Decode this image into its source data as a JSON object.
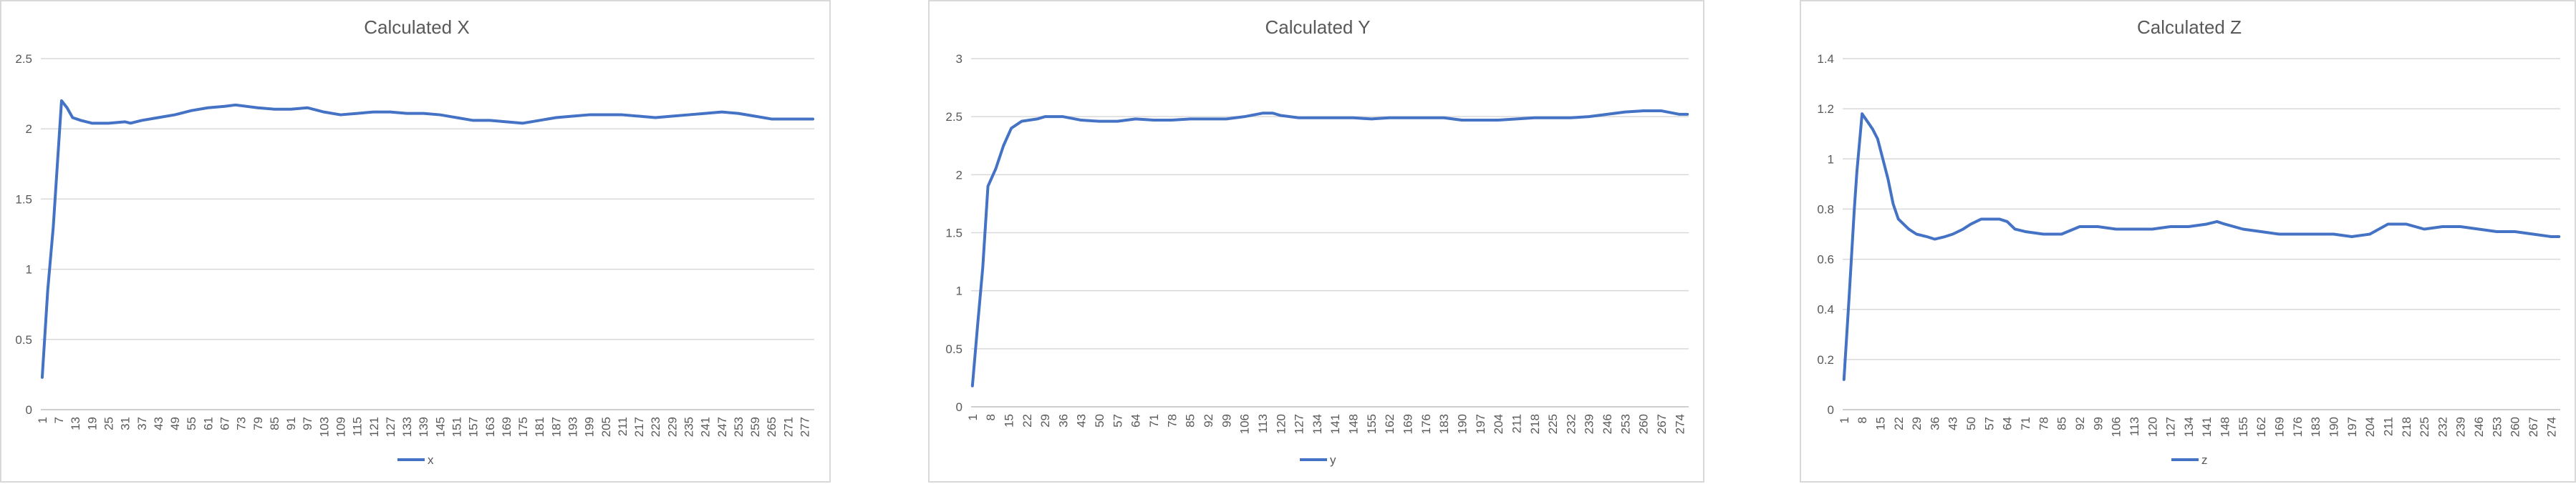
{
  "colors": {
    "series": "#4472c4",
    "grid": "#d9d9d9",
    "text": "#595959",
    "border": "#d9d9d9"
  },
  "chart_data": [
    {
      "type": "line",
      "title": "Calculated X",
      "xlabel": "",
      "ylabel": "",
      "ylim": [
        0,
        2.5
      ],
      "yticks": [
        "0",
        "0.5",
        "1",
        "1.5",
        "2",
        "2.5"
      ],
      "xticks": [
        "1",
        "7",
        "13",
        "19",
        "25",
        "31",
        "37",
        "43",
        "49",
        "55",
        "61",
        "67",
        "73",
        "79",
        "85",
        "91",
        "97",
        "103",
        "109",
        "115",
        "121",
        "127",
        "133",
        "139",
        "145",
        "151",
        "157",
        "163",
        "169",
        "175",
        "181",
        "187",
        "193",
        "199",
        "205",
        "211",
        "217",
        "223",
        "229",
        "235",
        "241",
        "247",
        "253",
        "259",
        "265",
        "271",
        "277"
      ],
      "x_count": 280,
      "grid": true,
      "legend_position": "bottom",
      "series": [
        {
          "name": "x",
          "points": [
            [
              1,
              0.23
            ],
            [
              3,
              0.85
            ],
            [
              5,
              1.3
            ],
            [
              6,
              1.6
            ],
            [
              8,
              2.2
            ],
            [
              10,
              2.15
            ],
            [
              12,
              2.08
            ],
            [
              15,
              2.06
            ],
            [
              19,
              2.04
            ],
            [
              25,
              2.04
            ],
            [
              31,
              2.05
            ],
            [
              33,
              2.04
            ],
            [
              37,
              2.06
            ],
            [
              43,
              2.08
            ],
            [
              49,
              2.1
            ],
            [
              55,
              2.13
            ],
            [
              61,
              2.15
            ],
            [
              67,
              2.16
            ],
            [
              71,
              2.17
            ],
            [
              79,
              2.15
            ],
            [
              85,
              2.14
            ],
            [
              91,
              2.14
            ],
            [
              97,
              2.15
            ],
            [
              103,
              2.12
            ],
            [
              109,
              2.1
            ],
            [
              115,
              2.11
            ],
            [
              121,
              2.12
            ],
            [
              127,
              2.12
            ],
            [
              133,
              2.11
            ],
            [
              139,
              2.11
            ],
            [
              145,
              2.1
            ],
            [
              151,
              2.08
            ],
            [
              157,
              2.06
            ],
            [
              163,
              2.06
            ],
            [
              169,
              2.05
            ],
            [
              175,
              2.04
            ],
            [
              181,
              2.06
            ],
            [
              187,
              2.08
            ],
            [
              193,
              2.09
            ],
            [
              199,
              2.1
            ],
            [
              205,
              2.1
            ],
            [
              211,
              2.1
            ],
            [
              217,
              2.09
            ],
            [
              223,
              2.08
            ],
            [
              229,
              2.09
            ],
            [
              235,
              2.1
            ],
            [
              241,
              2.11
            ],
            [
              247,
              2.12
            ],
            [
              253,
              2.11
            ],
            [
              259,
              2.09
            ],
            [
              265,
              2.07
            ],
            [
              271,
              2.07
            ],
            [
              280,
              2.07
            ]
          ]
        }
      ]
    },
    {
      "type": "line",
      "title": "Calculated Y",
      "xlabel": "",
      "ylabel": "",
      "ylim": [
        0,
        3
      ],
      "yticks": [
        "0",
        "0.5",
        "1",
        "1.5",
        "2",
        "2.5",
        "3"
      ],
      "xticks": [
        "1",
        "8",
        "15",
        "22",
        "29",
        "36",
        "43",
        "50",
        "57",
        "64",
        "71",
        "78",
        "85",
        "92",
        "99",
        "106",
        "113",
        "120",
        "127",
        "134",
        "141",
        "148",
        "155",
        "162",
        "169",
        "176",
        "183",
        "190",
        "197",
        "204",
        "211",
        "218",
        "225",
        "232",
        "239",
        "246",
        "253",
        "260",
        "267",
        "274"
      ],
      "x_count": 277,
      "grid": true,
      "legend_position": "bottom",
      "series": [
        {
          "name": "y",
          "points": [
            [
              1,
              0.18
            ],
            [
              3,
              0.7
            ],
            [
              5,
              1.2
            ],
            [
              7,
              1.9
            ],
            [
              10,
              2.05
            ],
            [
              13,
              2.25
            ],
            [
              16,
              2.4
            ],
            [
              20,
              2.46
            ],
            [
              26,
              2.48
            ],
            [
              29,
              2.5
            ],
            [
              36,
              2.5
            ],
            [
              43,
              2.47
            ],
            [
              50,
              2.46
            ],
            [
              57,
              2.46
            ],
            [
              64,
              2.48
            ],
            [
              71,
              2.47
            ],
            [
              78,
              2.47
            ],
            [
              85,
              2.48
            ],
            [
              92,
              2.48
            ],
            [
              99,
              2.48
            ],
            [
              106,
              2.5
            ],
            [
              113,
              2.53
            ],
            [
              117,
              2.53
            ],
            [
              120,
              2.51
            ],
            [
              127,
              2.49
            ],
            [
              134,
              2.49
            ],
            [
              141,
              2.49
            ],
            [
              148,
              2.49
            ],
            [
              155,
              2.48
            ],
            [
              162,
              2.49
            ],
            [
              169,
              2.49
            ],
            [
              176,
              2.49
            ],
            [
              183,
              2.49
            ],
            [
              190,
              2.47
            ],
            [
              197,
              2.47
            ],
            [
              204,
              2.47
            ],
            [
              211,
              2.48
            ],
            [
              218,
              2.49
            ],
            [
              225,
              2.49
            ],
            [
              232,
              2.49
            ],
            [
              239,
              2.5
            ],
            [
              246,
              2.52
            ],
            [
              253,
              2.54
            ],
            [
              260,
              2.55
            ],
            [
              267,
              2.55
            ],
            [
              274,
              2.52
            ],
            [
              277,
              2.52
            ]
          ]
        }
      ]
    },
    {
      "type": "line",
      "title": "Calculated Z",
      "xlabel": "",
      "ylabel": "",
      "ylim": [
        0,
        1.4
      ],
      "yticks": [
        "0",
        "0.2",
        "0.4",
        "0.6",
        "0.8",
        "1",
        "1.2",
        "1.4"
      ],
      "xticks": [
        "1",
        "8",
        "15",
        "22",
        "29",
        "36",
        "43",
        "50",
        "57",
        "64",
        "71",
        "78",
        "85",
        "92",
        "99",
        "106",
        "113",
        "120",
        "127",
        "134",
        "141",
        "148",
        "155",
        "162",
        "169",
        "176",
        "183",
        "190",
        "197",
        "204",
        "211",
        "218",
        "225",
        "232",
        "239",
        "246",
        "253",
        "260",
        "267",
        "274"
      ],
      "x_count": 277,
      "grid": true,
      "legend_position": "bottom",
      "series": [
        {
          "name": "z",
          "points": [
            [
              1,
              0.12
            ],
            [
              3,
              0.45
            ],
            [
              5,
              0.8
            ],
            [
              6,
              0.95
            ],
            [
              8,
              1.18
            ],
            [
              10,
              1.15
            ],
            [
              12,
              1.12
            ],
            [
              14,
              1.08
            ],
            [
              16,
              1.0
            ],
            [
              18,
              0.92
            ],
            [
              20,
              0.82
            ],
            [
              22,
              0.76
            ],
            [
              26,
              0.72
            ],
            [
              29,
              0.7
            ],
            [
              33,
              0.69
            ],
            [
              36,
              0.68
            ],
            [
              40,
              0.69
            ],
            [
              43,
              0.7
            ],
            [
              47,
              0.72
            ],
            [
              50,
              0.74
            ],
            [
              54,
              0.76
            ],
            [
              57,
              0.76
            ],
            [
              61,
              0.76
            ],
            [
              64,
              0.75
            ],
            [
              67,
              0.72
            ],
            [
              71,
              0.71
            ],
            [
              78,
              0.7
            ],
            [
              85,
              0.7
            ],
            [
              92,
              0.73
            ],
            [
              99,
              0.73
            ],
            [
              106,
              0.72
            ],
            [
              113,
              0.72
            ],
            [
              120,
              0.72
            ],
            [
              127,
              0.73
            ],
            [
              134,
              0.73
            ],
            [
              141,
              0.74
            ],
            [
              145,
              0.75
            ],
            [
              148,
              0.74
            ],
            [
              155,
              0.72
            ],
            [
              162,
              0.71
            ],
            [
              169,
              0.7
            ],
            [
              176,
              0.7
            ],
            [
              183,
              0.7
            ],
            [
              190,
              0.7
            ],
            [
              197,
              0.69
            ],
            [
              204,
              0.7
            ],
            [
              211,
              0.74
            ],
            [
              218,
              0.74
            ],
            [
              225,
              0.72
            ],
            [
              232,
              0.73
            ],
            [
              239,
              0.73
            ],
            [
              246,
              0.72
            ],
            [
              253,
              0.71
            ],
            [
              260,
              0.71
            ],
            [
              267,
              0.7
            ],
            [
              274,
              0.69
            ],
            [
              277,
              0.69
            ]
          ]
        }
      ]
    }
  ]
}
